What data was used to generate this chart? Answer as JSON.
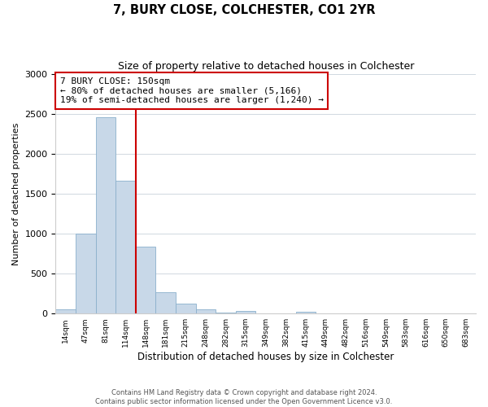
{
  "title": "7, BURY CLOSE, COLCHESTER, CO1 2YR",
  "subtitle": "Size of property relative to detached houses in Colchester",
  "xlabel": "Distribution of detached houses by size in Colchester",
  "ylabel": "Number of detached properties",
  "bar_labels": [
    "14sqm",
    "47sqm",
    "81sqm",
    "114sqm",
    "148sqm",
    "181sqm",
    "215sqm",
    "248sqm",
    "282sqm",
    "315sqm",
    "349sqm",
    "382sqm",
    "415sqm",
    "449sqm",
    "482sqm",
    "516sqm",
    "549sqm",
    "583sqm",
    "616sqm",
    "650sqm",
    "683sqm"
  ],
  "bar_values": [
    55,
    1000,
    2460,
    1660,
    835,
    270,
    120,
    55,
    10,
    30,
    0,
    0,
    20,
    0,
    0,
    0,
    0,
    0,
    0,
    0,
    0
  ],
  "bar_color": "#c8d8e8",
  "bar_edge_color": "#8ab0cc",
  "vline_x": 4,
  "vline_color": "#cc0000",
  "annotation_text": "7 BURY CLOSE: 150sqm\n← 80% of detached houses are smaller (5,166)\n19% of semi-detached houses are larger (1,240) →",
  "annotation_box_edge": "#cc0000",
  "ylim": [
    0,
    3000
  ],
  "yticks": [
    0,
    500,
    1000,
    1500,
    2000,
    2500,
    3000
  ],
  "footer_text": "Contains HM Land Registry data © Crown copyright and database right 2024.\nContains public sector information licensed under the Open Government Licence v3.0.",
  "background_color": "#ffffff",
  "grid_color": "#d0d8e0"
}
